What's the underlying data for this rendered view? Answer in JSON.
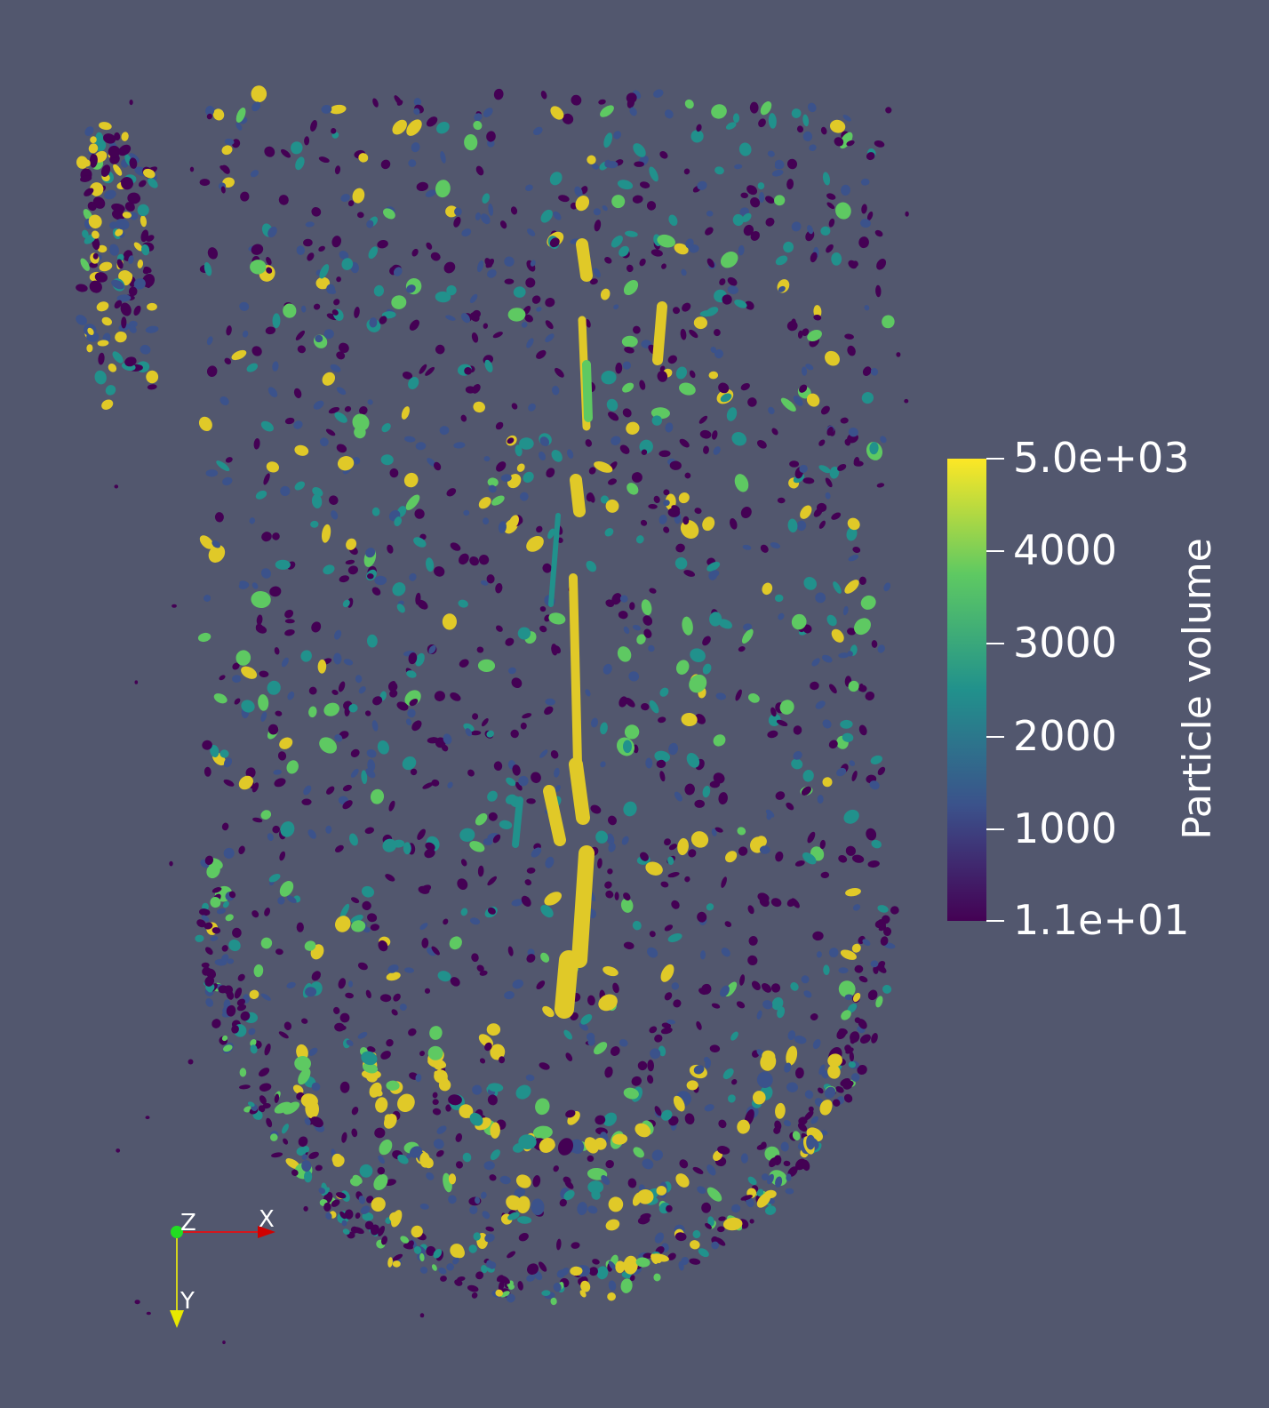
{
  "scene": {
    "background_color": "#52576e",
    "colormap": [
      "#440154",
      "#3b528b",
      "#21918c",
      "#5ec962",
      "#fde725"
    ],
    "particle_color_yellow": "#e0c928"
  },
  "colorbar": {
    "title": "Particle volume",
    "range": [
      11,
      5000
    ],
    "labels": [
      {
        "text": "5.0e+03",
        "value": 5000
      },
      {
        "text": "4000",
        "value": 4000
      },
      {
        "text": "3000",
        "value": 3000
      },
      {
        "text": "2000",
        "value": 2000
      },
      {
        "text": "1000",
        "value": 1000
      },
      {
        "text": "1.1e+01",
        "value": 11
      }
    ]
  },
  "axes": {
    "x_label": "X",
    "y_label": "Y",
    "z_label": "Z",
    "x_color": "#ff0000",
    "y_color": "#ffff00",
    "z_color": "#00ff00"
  }
}
